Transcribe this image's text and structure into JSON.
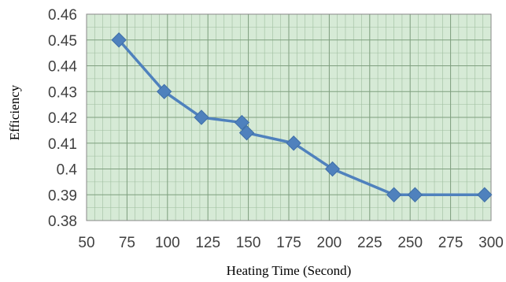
{
  "chart_data": {
    "type": "line",
    "title": "",
    "xlabel": "Heating Time (Second)",
    "ylabel": "Efficiency",
    "xlim": [
      50,
      300
    ],
    "ylim": [
      0.38,
      0.46
    ],
    "x_ticks": [
      50,
      75,
      100,
      125,
      150,
      175,
      200,
      225,
      250,
      275,
      300
    ],
    "x_tick_labels": [
      "50",
      "75",
      "100",
      "125",
      "150",
      "175",
      "200",
      "225",
      "250",
      "275",
      "300"
    ],
    "y_ticks": [
      0.46,
      0.45,
      0.44,
      0.43,
      0.42,
      0.41,
      0.4,
      0.39,
      0.38
    ],
    "y_tick_labels": [
      "0.46",
      "0.45",
      "0.44",
      "0.43",
      "0.42",
      "0.41",
      "0.4",
      "0.39",
      "0.38"
    ],
    "grid": true,
    "legend": "none",
    "series": [
      {
        "marker": "diamond",
        "points": [
          {
            "x": 70,
            "y": 0.45
          },
          {
            "x": 98,
            "y": 0.43
          },
          {
            "x": 121,
            "y": 0.42
          },
          {
            "x": 146,
            "y": 0.418
          },
          {
            "x": 149,
            "y": 0.414
          },
          {
            "x": 178,
            "y": 0.41
          },
          {
            "x": 202,
            "y": 0.4
          },
          {
            "x": 240,
            "y": 0.39
          },
          {
            "x": 253,
            "y": 0.39
          },
          {
            "x": 296,
            "y": 0.39
          }
        ]
      }
    ],
    "colors": {
      "plot_background": "#d6ead6",
      "minor_grid": "#9fbe9f",
      "major_grid": "#7f9f7f",
      "series": "#4f81bd",
      "axis": "#888888"
    }
  }
}
